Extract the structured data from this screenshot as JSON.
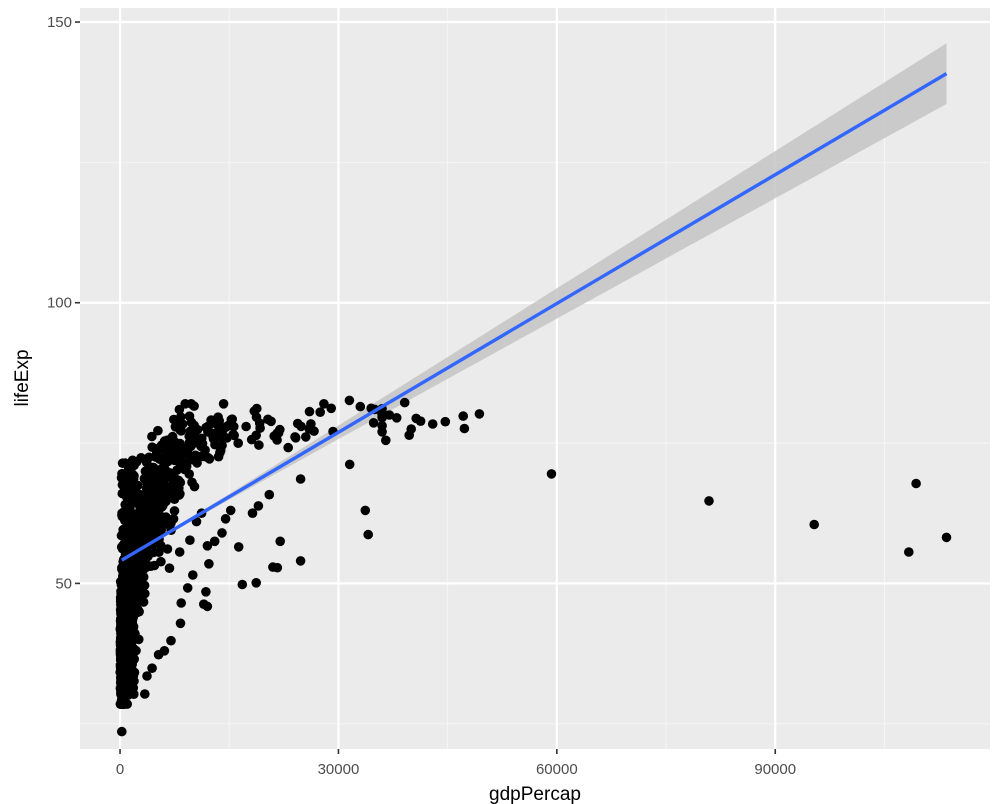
{
  "chart_data": {
    "type": "scatter",
    "title": "",
    "xlabel": "gdpPercap",
    "ylabel": "lifeExp",
    "xlim": [
      -5500,
      119500
    ],
    "ylim": [
      20.5,
      152.5
    ],
    "x_ticks": [
      0,
      30000,
      60000,
      90000
    ],
    "x_tick_labels": [
      "0",
      "30000",
      "60000",
      "90000"
    ],
    "x_minor": [
      15000,
      45000,
      75000,
      105000
    ],
    "y_ticks": [
      50,
      100,
      150
    ],
    "y_tick_labels": [
      "50",
      "100",
      "150"
    ],
    "y_minor": [
      25,
      75,
      125
    ],
    "grid": true,
    "legend": "none",
    "colors": {
      "panel_bg": "#ebebeb",
      "grid_major": "#ffffff",
      "grid_minor": "#f5f5f5",
      "point": "#000000",
      "smooth_line": "#3366ff",
      "ribbon": "#c4c4c4"
    },
    "smooth": {
      "method": "lm",
      "intercept": 53.96,
      "slope": 0.000765,
      "x_range": [
        241,
        113523
      ],
      "ci_halfwidth_at_end": 5.4,
      "ci_halfwidth_at_mean": 0.35,
      "x_mean": 7215
    },
    "cluster": {
      "description": "dense mass of ~1700 points at low gdpPercap",
      "n": 1650,
      "seed": 42
    },
    "points": [
      [
        59265,
        69.5
      ],
      [
        80895,
        64.7
      ],
      [
        95350,
        60.5
      ],
      [
        109348,
        67.8
      ],
      [
        108350,
        55.6
      ],
      [
        113523,
        58.2
      ],
      [
        49357,
        80.2
      ],
      [
        47143,
        79.8
      ],
      [
        47306,
        77.6
      ],
      [
        44684,
        78.8
      ],
      [
        42951,
        78.4
      ],
      [
        41283,
        78.9
      ],
      [
        40676,
        79.4
      ],
      [
        39725,
        76.4
      ],
      [
        39097,
        82.2
      ],
      [
        40000,
        77.5
      ],
      [
        33693,
        63.0
      ],
      [
        34082,
        58.7
      ],
      [
        31540,
        71.2
      ],
      [
        36000,
        77.0
      ],
      [
        35000,
        81.0
      ],
      [
        37000,
        80.0
      ],
      [
        38000,
        79.5
      ],
      [
        36500,
        75.5
      ],
      [
        22000,
        57.5
      ],
      [
        21600,
        52.8
      ],
      [
        21000,
        52.9
      ],
      [
        24800,
        54.0
      ],
      [
        16800,
        49.8
      ],
      [
        18700,
        50.1
      ],
      [
        24800,
        68.6
      ],
      [
        20500,
        65.8
      ],
      [
        16300,
        56.5
      ],
      [
        18200,
        62.5
      ],
      [
        19000,
        63.8
      ],
      [
        14000,
        59.0
      ],
      [
        13000,
        57.5
      ],
      [
        12000,
        56.7
      ],
      [
        12200,
        53.5
      ],
      [
        11800,
        48.5
      ],
      [
        11500,
        46.3
      ],
      [
        12000,
        45.9
      ],
      [
        10000,
        51.5
      ],
      [
        9300,
        49.2
      ],
      [
        8400,
        46.5
      ],
      [
        8300,
        42.9
      ],
      [
        7000,
        39.8
      ],
      [
        6100,
        38.0
      ],
      [
        5300,
        37.3
      ],
      [
        4400,
        34.9
      ],
      [
        3700,
        33.5
      ],
      [
        3400,
        30.3
      ],
      [
        241,
        23.6
      ],
      [
        6800,
        52.7
      ],
      [
        8200,
        55.6
      ],
      [
        9600,
        57.7
      ],
      [
        14500,
        61.5
      ],
      [
        15200,
        63.0
      ],
      [
        10500,
        61.0
      ],
      [
        11200,
        62.5
      ],
      [
        26000,
        77.5
      ],
      [
        28000,
        82.0
      ],
      [
        31500,
        82.6
      ],
      [
        13400,
        78.3
      ],
      [
        8600,
        78.4
      ],
      [
        9800,
        78.7
      ],
      [
        5200,
        77.2
      ],
      [
        7600,
        77.9
      ],
      [
        29000,
        81.2
      ],
      [
        33000,
        81.5
      ],
      [
        27500,
        80.5
      ],
      [
        34500,
        81.2
      ]
    ]
  }
}
